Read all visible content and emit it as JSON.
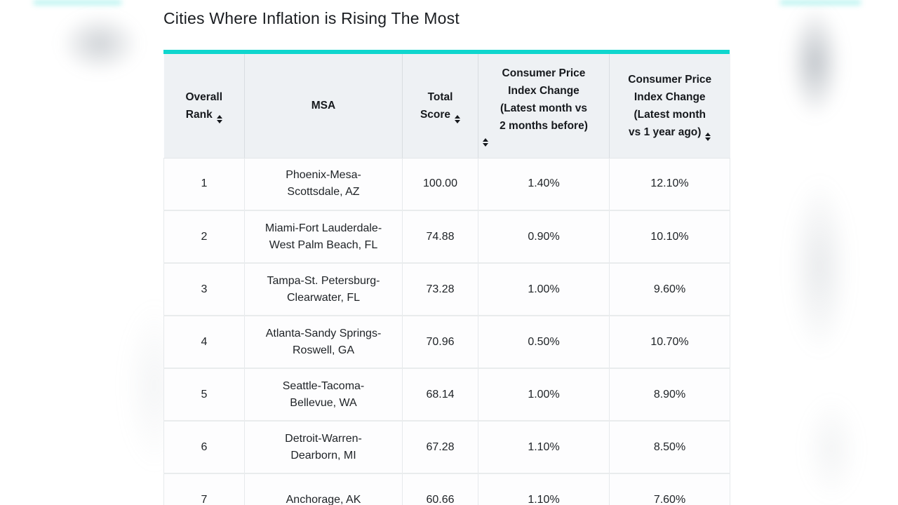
{
  "page": {
    "title": "Cities Where Inflation is Rising The Most"
  },
  "colors": {
    "accent_teal": "#0fd6ce",
    "header_bg": "#eef1f4",
    "header_text": "#16191d",
    "body_text": "#1e2226",
    "grid_vertical": "#d9dde1",
    "grid_horizontal": "#e9eced"
  },
  "table": {
    "sort_icon": "sort-arrows-icon",
    "columns": [
      {
        "label": "Overall\nRank",
        "sortable": true
      },
      {
        "label": "MSA",
        "sortable": false
      },
      {
        "label": "Total\nScore",
        "sortable": true
      },
      {
        "label": "Consumer Price\nIndex Change\n(Latest month vs\n2 months before)",
        "sortable": true
      },
      {
        "label": "Consumer Price\nIndex Change\n(Latest month\nvs 1 year ago)",
        "sortable": true
      }
    ],
    "rows": [
      {
        "rank": "1",
        "msa": "Phoenix-Mesa-\nScottsdale, AZ",
        "score": "100.00",
        "cpi_2mo": "1.40%",
        "cpi_1yr": "12.10%"
      },
      {
        "rank": "2",
        "msa": "Miami-Fort Lauderdale-\nWest Palm Beach, FL",
        "score": "74.88",
        "cpi_2mo": "0.90%",
        "cpi_1yr": "10.10%"
      },
      {
        "rank": "3",
        "msa": "Tampa-St. Petersburg-\nClearwater, FL",
        "score": "73.28",
        "cpi_2mo": "1.00%",
        "cpi_1yr": "9.60%"
      },
      {
        "rank": "4",
        "msa": "Atlanta-Sandy Springs-\nRoswell, GA",
        "score": "70.96",
        "cpi_2mo": "0.50%",
        "cpi_1yr": "10.70%"
      },
      {
        "rank": "5",
        "msa": "Seattle-Tacoma-\nBellevue, WA",
        "score": "68.14",
        "cpi_2mo": "1.00%",
        "cpi_1yr": "8.90%"
      },
      {
        "rank": "6",
        "msa": "Detroit-Warren-\nDearborn, MI",
        "score": "67.28",
        "cpi_2mo": "1.10%",
        "cpi_1yr": "8.50%"
      },
      {
        "rank": "7",
        "msa": "Anchorage, AK",
        "score": "60.66",
        "cpi_2mo": "1.10%",
        "cpi_1yr": "7.60%"
      }
    ]
  },
  "chart_data": {
    "type": "table",
    "title": "Cities Where Inflation is Rising The Most",
    "columns": [
      "Overall Rank",
      "MSA",
      "Total Score",
      "Consumer Price Index Change (Latest month vs 2 months before)",
      "Consumer Price Index Change (Latest month vs 1 year ago)"
    ],
    "rows": [
      [
        1,
        "Phoenix-Mesa-Scottsdale, AZ",
        100.0,
        "1.40%",
        "12.10%"
      ],
      [
        2,
        "Miami-Fort Lauderdale-West Palm Beach, FL",
        74.88,
        "0.90%",
        "10.10%"
      ],
      [
        3,
        "Tampa-St. Petersburg-Clearwater, FL",
        73.28,
        "1.00%",
        "9.60%"
      ],
      [
        4,
        "Atlanta-Sandy Springs-Roswell, GA",
        70.96,
        "0.50%",
        "10.70%"
      ],
      [
        5,
        "Seattle-Tacoma-Bellevue, WA",
        68.14,
        "1.00%",
        "8.90%"
      ],
      [
        6,
        "Detroit-Warren-Dearborn, MI",
        67.28,
        "1.10%",
        "8.50%"
      ],
      [
        7,
        "Anchorage, AK",
        60.66,
        "1.10%",
        "7.60%"
      ]
    ]
  }
}
